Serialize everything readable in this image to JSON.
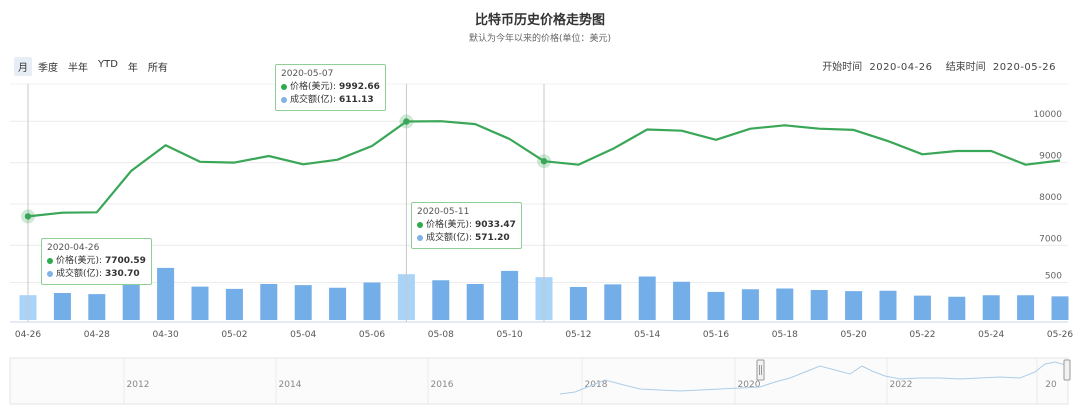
{
  "title": "比特币历史价格走势图",
  "subtitle": "默认为今年以来的价格(单位：美元)",
  "range_buttons": [
    "月",
    "季度",
    "半年",
    "YTD",
    "年",
    "所有"
  ],
  "active_range": 0,
  "date_range": {
    "start_label": "开始时间",
    "start_value": "2020-04-26",
    "end_label": "结束时间",
    "end_value": "2020-05-26"
  },
  "tooltips": [
    {
      "date": "2020-04-26",
      "price_label": "价格(美元):",
      "price": "7700.59",
      "volume_label": "成交额(亿):",
      "volume": "330.70"
    },
    {
      "date": "2020-05-07",
      "price_label": "价格(美元):",
      "price": "9992.66",
      "volume_label": "成交额(亿):",
      "volume": "611.13"
    },
    {
      "date": "2020-05-11",
      "price_label": "价格(美元):",
      "price": "9033.47",
      "volume_label": "成交额(亿):",
      "volume": "571.20"
    }
  ],
  "colors": {
    "line": "#3aa657",
    "bar": "#73aee8",
    "bar_highlight": "#a9d3f7",
    "navigator": "#aecde8"
  },
  "chart_data": {
    "type": "line",
    "title": "比特币历史价格走势图",
    "subtitle": "默认为今年以来的价格(单位：美元)",
    "x": [
      "04-26",
      "04-27",
      "04-28",
      "04-29",
      "04-30",
      "05-01",
      "05-02",
      "05-03",
      "05-04",
      "05-05",
      "05-06",
      "05-07",
      "05-08",
      "05-09",
      "05-10",
      "05-11",
      "05-12",
      "05-13",
      "05-14",
      "05-15",
      "05-16",
      "05-17",
      "05-18",
      "05-19",
      "05-20",
      "05-21",
      "05-22",
      "05-23",
      "05-24",
      "05-25",
      "05-26"
    ],
    "x_ticks": [
      "04-26",
      "04-28",
      "04-30",
      "05-02",
      "05-04",
      "05-06",
      "05-08",
      "05-10",
      "05-12",
      "05-14",
      "05-16",
      "05-18",
      "05-20",
      "05-22",
      "05-24",
      "05-26"
    ],
    "series": [
      {
        "values": [
          7700.59,
          7790,
          7800,
          8800,
          9420,
          9020,
          9000,
          9160,
          8960,
          9070,
          9400,
          9992.66,
          10000,
          9930,
          9570,
          9033.47,
          8950,
          9330,
          9800,
          9770,
          9550,
          9820,
          9900,
          9820,
          9790,
          9520,
          9200,
          9280,
          9280,
          8950,
          9050
        ]
      },
      {
        "values": [
          330.7,
          360,
          345,
          495,
          695,
          445,
          415,
          480,
          465,
          430,
          500,
          611.13,
          530,
          480,
          655,
          571.2,
          440,
          475,
          580,
          510,
          375,
          410,
          420,
          400,
          385,
          390,
          325,
          310,
          330,
          330,
          315
        ]
      }
    ],
    "price_axis": {
      "ticks": [
        7000,
        8000,
        9000,
        10000
      ]
    },
    "volume_axis": {
      "ticks": [
        0,
        500
      ]
    },
    "highlighted": [
      "04-26",
      "05-07",
      "05-11"
    ],
    "navigator": {
      "labels": [
        "2012",
        "2014",
        "2016",
        "2018",
        "2020",
        "2022",
        "20"
      ]
    }
  }
}
